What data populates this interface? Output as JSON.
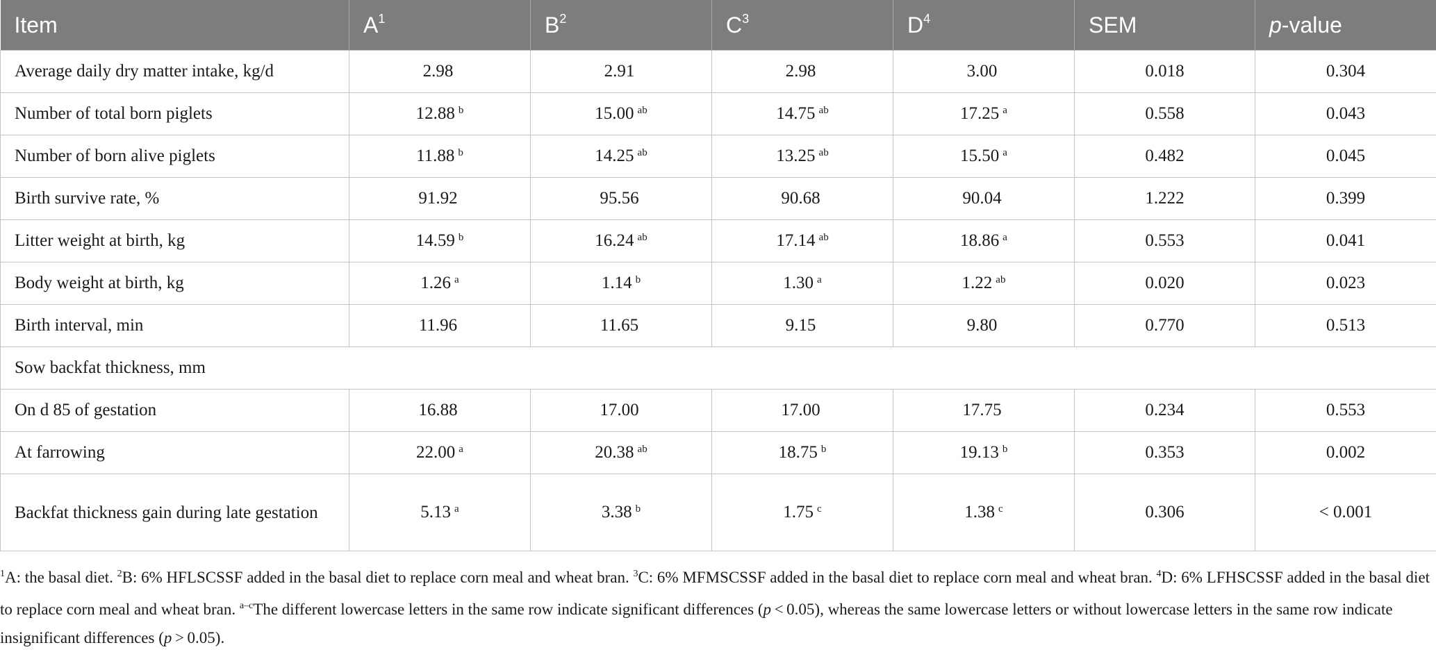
{
  "header": {
    "item": "Item",
    "a": "A",
    "a_sup": "1",
    "b": "B",
    "b_sup": "2",
    "c": "C",
    "c_sup": "3",
    "d": "D",
    "d_sup": "4",
    "sem": "SEM",
    "p_italic": "p",
    "p_rest": "-value"
  },
  "rows": [
    {
      "label": "Average daily dry matter intake, kg/d",
      "a": "2.98",
      "a_s": "",
      "b": "2.91",
      "b_s": "",
      "c": "2.98",
      "c_s": "",
      "d": "3.00",
      "d_s": "",
      "sem": "0.018",
      "p": "0.304"
    },
    {
      "label": "Number of total born piglets",
      "a": "12.88",
      "a_s": "b",
      "b": "15.00",
      "b_s": "ab",
      "c": "14.75",
      "c_s": "ab",
      "d": "17.25",
      "d_s": "a",
      "sem": "0.558",
      "p": "0.043"
    },
    {
      "label": "Number of born alive piglets",
      "a": "11.88",
      "a_s": "b",
      "b": "14.25",
      "b_s": "ab",
      "c": "13.25",
      "c_s": "ab",
      "d": "15.50",
      "d_s": "a",
      "sem": "0.482",
      "p": "0.045"
    },
    {
      "label": "Birth survive rate, %",
      "a": "91.92",
      "a_s": "",
      "b": "95.56",
      "b_s": "",
      "c": "90.68",
      "c_s": "",
      "d": "90.04",
      "d_s": "",
      "sem": "1.222",
      "p": "0.399"
    },
    {
      "label": "Litter weight at birth, kg",
      "a": "14.59",
      "a_s": "b",
      "b": "16.24",
      "b_s": "ab",
      "c": "17.14",
      "c_s": "ab",
      "d": "18.86",
      "d_s": "a",
      "sem": "0.553",
      "p": "0.041"
    },
    {
      "label": "Body weight at birth, kg",
      "a": "1.26",
      "a_s": "a",
      "b": "1.14",
      "b_s": "b",
      "c": "1.30",
      "c_s": "a",
      "d": "1.22",
      "d_s": "ab",
      "sem": "0.020",
      "p": "0.023"
    },
    {
      "label": "Birth interval, min",
      "a": "11.96",
      "a_s": "",
      "b": "11.65",
      "b_s": "",
      "c": "9.15",
      "c_s": "",
      "d": "9.80",
      "d_s": "",
      "sem": "0.770",
      "p": "0.513"
    }
  ],
  "section_label": "Sow backfat thickness, mm",
  "rows2": [
    {
      "label": "On d 85 of gestation",
      "a": "16.88",
      "a_s": "",
      "b": "17.00",
      "b_s": "",
      "c": "17.00",
      "c_s": "",
      "d": "17.75",
      "d_s": "",
      "sem": "0.234",
      "p": "0.553"
    },
    {
      "label": "At farrowing",
      "a": "22.00",
      "a_s": "a",
      "b": "20.38",
      "b_s": "ab",
      "c": "18.75",
      "c_s": "b",
      "d": "19.13",
      "d_s": "b",
      "sem": "0.353",
      "p": "0.002"
    },
    {
      "label": "Backfat thickness gain during late gestation",
      "a": "5.13",
      "a_s": "a",
      "b": "3.38",
      "b_s": "b",
      "c": "1.75",
      "c_s": "c",
      "d": "1.38",
      "d_s": "c",
      "sem": "0.306",
      "p": "< 0.001"
    }
  ],
  "footnote": {
    "n1": "1",
    "t1": "A: the basal diet. ",
    "n2": "2",
    "t2": "B: 6% HFLSCSSF added in the basal diet to replace corn meal and wheat bran. ",
    "n3": "3",
    "t3": "C: 6% MFMSCSSF added in the basal diet to replace corn meal and wheat bran. ",
    "n4": "4",
    "t4": "D: 6% LFHSCSSF added in the basal diet to replace corn meal and wheat bran. ",
    "n5": "a–c",
    "t5": "The different lowercase letters in the same row indicate significant differences (",
    "p1": "p",
    "t6": " < 0.05), whereas the same lowercase letters or without lowercase letters in the same row indicate insignificant differences (",
    "p2": "p",
    "t7": " > 0.05)."
  }
}
